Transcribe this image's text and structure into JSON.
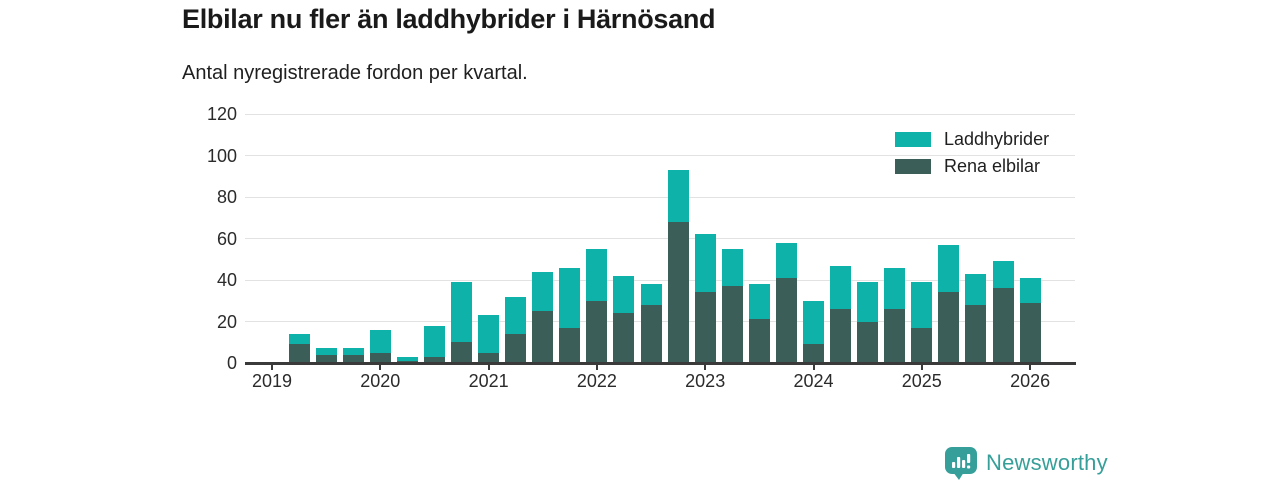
{
  "header": {
    "title": "Elbilar nu fler än laddhybrider i Härnösand",
    "subtitle": "Antal nyregistrerade fordon per kvartal."
  },
  "legend": [
    {
      "label": "Laddhybrider",
      "color": "#0eb2a8"
    },
    {
      "label": "Rena elbilar",
      "color": "#3b5f58"
    }
  ],
  "branding": {
    "name": "Newsworthy",
    "color": "#379f99",
    "icon": "bar-chart-badge"
  },
  "chart_data": {
    "type": "bar",
    "stacked": true,
    "title": "Elbilar nu fler än laddhybrider i Härnösand",
    "subtitle": "Antal nyregistrerade fordon per kvartal.",
    "xlabel": "",
    "ylabel": "",
    "ylim": [
      0,
      120
    ],
    "yticks": [
      0,
      20,
      40,
      60,
      80,
      100,
      120
    ],
    "grid": true,
    "legend_position": "top-right",
    "x_tick_labels": [
      "2019",
      "2020",
      "2021",
      "2022",
      "2023",
      "2024",
      "2025",
      "2026"
    ],
    "categories": [
      "2019 Q1",
      "2019 Q2",
      "2019 Q3",
      "2019 Q4",
      "2020 Q1",
      "2020 Q2",
      "2020 Q3",
      "2020 Q4",
      "2021 Q1",
      "2021 Q2",
      "2021 Q3",
      "2021 Q4",
      "2022 Q1",
      "2022 Q2",
      "2022 Q3",
      "2022 Q4",
      "2023 Q1",
      "2023 Q2",
      "2023 Q3",
      "2023 Q4",
      "2024 Q1",
      "2024 Q2",
      "2024 Q3",
      "2024 Q4",
      "2025 Q1",
      "2025 Q2",
      "2025 Q3",
      "2025 Q4",
      "2026 Q1"
    ],
    "series": [
      {
        "name": "Rena elbilar",
        "color": "#3b5f58",
        "stack_order": "bottom",
        "values": [
          0,
          9,
          4,
          4,
          5,
          1,
          3,
          10,
          5,
          14,
          25,
          17,
          30,
          24,
          28,
          68,
          34,
          37,
          21,
          41,
          9,
          26,
          20,
          26,
          17,
          34,
          28,
          36,
          29
        ]
      },
      {
        "name": "Laddhybrider",
        "color": "#0eb2a8",
        "stack_order": "top",
        "values": [
          0,
          5,
          3,
          3,
          11,
          2,
          15,
          29,
          18,
          18,
          19,
          29,
          25,
          18,
          10,
          25,
          28,
          18,
          17,
          17,
          21,
          21,
          19,
          20,
          22,
          23,
          15,
          13,
          12
        ]
      }
    ],
    "totals": [
      0,
      14,
      7,
      7,
      16,
      3,
      18,
      39,
      23,
      32,
      44,
      46,
      55,
      42,
      38,
      93,
      62,
      55,
      38,
      58,
      30,
      47,
      39,
      46,
      39,
      57,
      43,
      49,
      41
    ]
  }
}
